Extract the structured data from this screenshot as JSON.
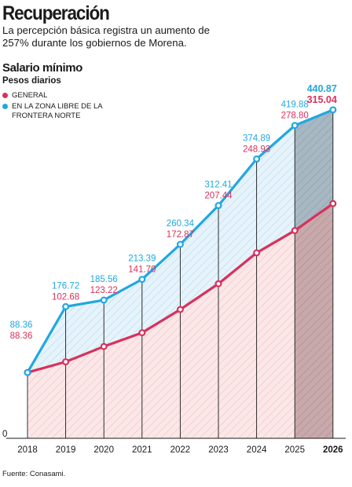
{
  "header": {
    "title": "Recuperación",
    "subtitle": "La percepción básica registra un aumento de 257% durante los gobiernos de Morena."
  },
  "footer": {
    "source": "Fuente: Conasami."
  },
  "colors": {
    "general": "#d8315b",
    "frontera": "#22a7e0",
    "last_bar": "#7f8c94"
  },
  "chart_data": {
    "type": "area",
    "title": "Salario mínimo",
    "ylabel": "Pesos diarios",
    "x": [
      "2018",
      "2019",
      "2020",
      "2021",
      "2022",
      "2023",
      "2024",
      "2025",
      "2026"
    ],
    "x_highlight": "2026",
    "ylim": [
      0,
      450
    ],
    "y_ticks": [
      "0"
    ],
    "legend_position": "top-left",
    "series": [
      {
        "name": "General",
        "key": "general",
        "values": [
          88.36,
          102.68,
          123.22,
          141.7,
          172.87,
          207.44,
          248.93,
          278.8,
          315.04
        ],
        "labels": [
          "88.36",
          "102.68",
          "123.22",
          "141.70",
          "172.87",
          "207.44",
          "248.93",
          "278.80",
          "315.04"
        ]
      },
      {
        "name": "En la Zona Libre de la Frontera Norte",
        "key": "frontera",
        "values": [
          88.36,
          176.72,
          185.56,
          213.39,
          260.34,
          312.41,
          374.89,
          419.88,
          440.87
        ],
        "labels": [
          "88.36",
          "176.72",
          "185.56",
          "213.39",
          "260.34",
          "312.41",
          "374.89",
          "419.88",
          "440.87"
        ]
      }
    ]
  }
}
